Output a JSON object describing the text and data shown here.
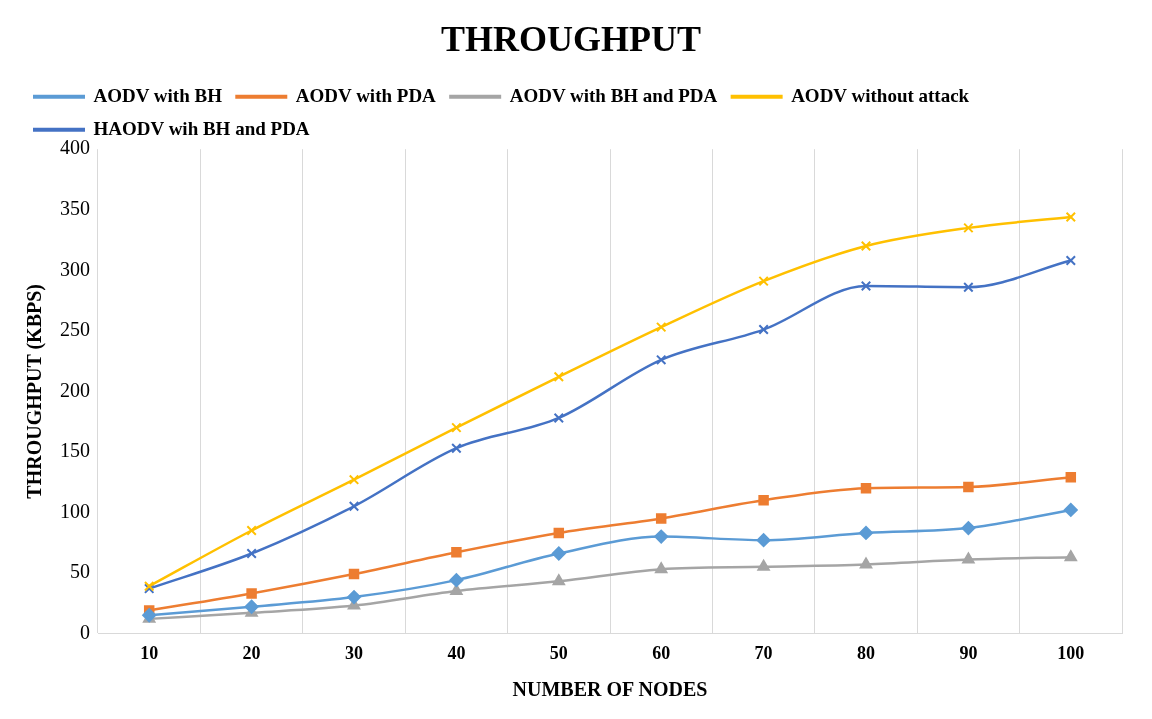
{
  "chart_data": {
    "type": "line",
    "title": "THROUGHPUT",
    "xlabel": "NUMBER OF NODES",
    "ylabel": "THROUGHPUT (KBPS)",
    "categories": [
      "10",
      "20",
      "30",
      "40",
      "50",
      "60",
      "70",
      "80",
      "90",
      "100"
    ],
    "series": [
      {
        "name": "AODV with BH",
        "color": "#5b9bd5",
        "marker": "diamond",
        "values": [
          15,
          22,
          30,
          44,
          66,
          80,
          77,
          83,
          87,
          102
        ]
      },
      {
        "name": "AODV with PDA",
        "color": "#ed7d31",
        "marker": "square",
        "values": [
          19,
          33,
          49,
          67,
          83,
          95,
          110,
          120,
          121,
          129
        ]
      },
      {
        "name": "AODV with BH and PDA",
        "color": "#a5a5a5",
        "marker": "triangle",
        "values": [
          12,
          17,
          23,
          35,
          43,
          53,
          55,
          57,
          61,
          63
        ]
      },
      {
        "name": "AODV without attack",
        "color": "#ffc000",
        "marker": "cross",
        "values": [
          39,
          85,
          127,
          170,
          212,
          253,
          291,
          320,
          335,
          344
        ]
      },
      {
        "name": "HAODV wih BH and PDA",
        "color": "#4472c4",
        "marker": "cross",
        "values": [
          37,
          66,
          105,
          153,
          178,
          226,
          251,
          287,
          286,
          308
        ]
      }
    ],
    "ylim": [
      0,
      400
    ],
    "yticks": [
      0,
      50,
      100,
      150,
      200,
      250,
      300,
      350,
      400
    ],
    "grid": "x",
    "legend": "top"
  }
}
